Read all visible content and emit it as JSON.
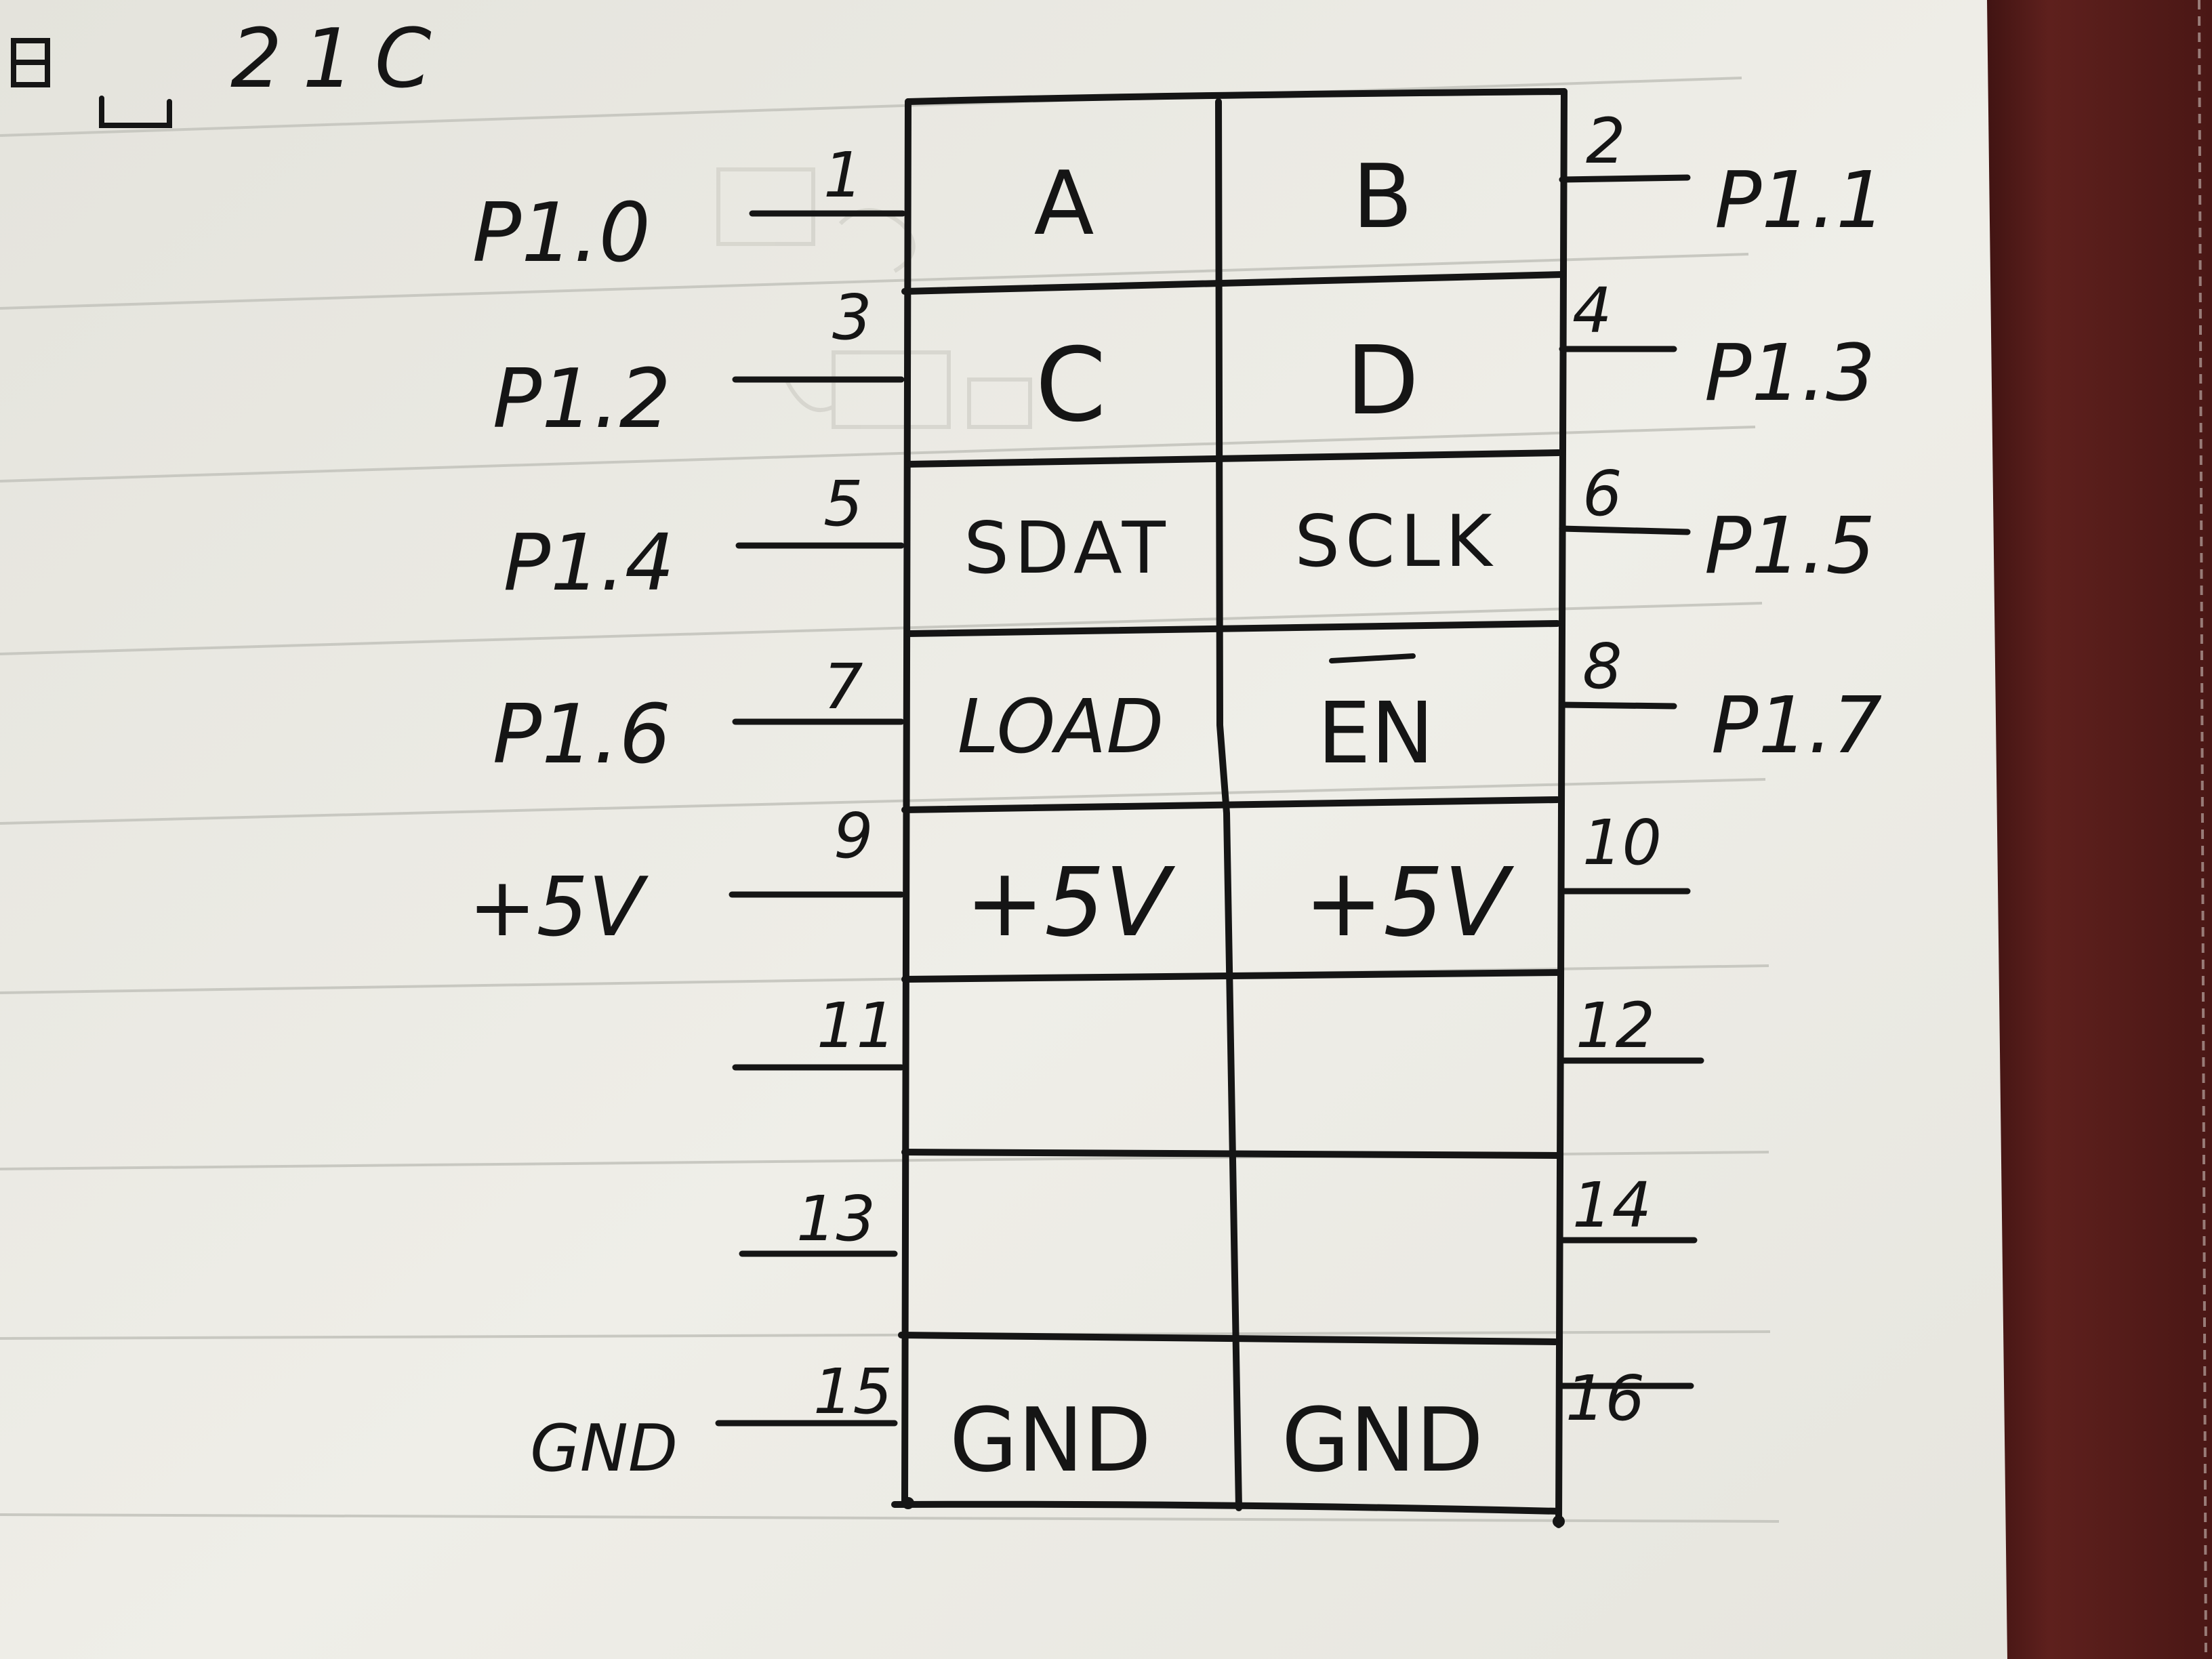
{
  "header_text": "21C",
  "pin_table": {
    "rows": [
      {
        "left_pin": "1",
        "left_func": "A",
        "right_func": "B",
        "right_pin": "2"
      },
      {
        "left_pin": "3",
        "left_func": "C",
        "right_func": "D",
        "right_pin": "4"
      },
      {
        "left_pin": "5",
        "left_func": "SDAT",
        "right_func": "SCLK",
        "right_pin": "6"
      },
      {
        "left_pin": "7",
        "left_func": "LOAD",
        "right_func": "EN",
        "right_pin": "8"
      },
      {
        "left_pin": "9",
        "left_func": "+5V",
        "right_func": "+5V",
        "right_pin": "10"
      },
      {
        "left_pin": "11",
        "left_func": "",
        "right_func": "",
        "right_pin": "12"
      },
      {
        "left_pin": "13",
        "left_func": "",
        "right_func": "",
        "right_pin": "14"
      },
      {
        "left_pin": "15",
        "left_func": "GND",
        "right_func": "GND",
        "right_pin": "16"
      }
    ]
  },
  "left_signals": [
    "P1.0",
    "P1.2",
    "P1.4",
    "P1.6",
    "+5V",
    "",
    "",
    "GND"
  ],
  "right_signals": [
    "P1.1",
    "P1.3",
    "P1.5",
    "P1.7",
    "",
    "",
    "",
    ""
  ],
  "overbar_on": "EN",
  "colors": {
    "paper": "#ecebe4",
    "ruled_line": "#c9c9c3",
    "ink": "#151515",
    "cover": "#5a1e1c"
  }
}
